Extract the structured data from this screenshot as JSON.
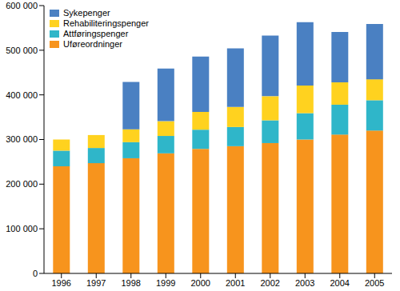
{
  "chart_data": {
    "type": "bar",
    "stacked": true,
    "legend": "top-left",
    "grid": false,
    "categories": [
      "1996",
      "1997",
      "1998",
      "1999",
      "2000",
      "2001",
      "2002",
      "2003",
      "2004",
      "2005"
    ],
    "series": [
      {
        "name": "Uføreordninger",
        "color": "#f7941d",
        "values": [
          240000,
          247000,
          258000,
          269000,
          279000,
          285000,
          292000,
          300000,
          311000,
          320000
        ]
      },
      {
        "name": "Attføringspenger",
        "color": "#2fb6c9",
        "values": [
          35000,
          34000,
          36000,
          39000,
          43000,
          43000,
          51000,
          59000,
          67000,
          68000
        ]
      },
      {
        "name": "Rehabiliteringspenger",
        "color": "#ffd21f",
        "values": [
          25000,
          29000,
          29000,
          33000,
          40000,
          45000,
          54000,
          62000,
          50000,
          47000
        ]
      },
      {
        "name": "Sykepenger",
        "color": "#4a80c2",
        "values": [
          0,
          0,
          106000,
          118000,
          124000,
          131000,
          136000,
          142000,
          113000,
          124000
        ]
      }
    ],
    "ylim": [
      0,
      600000
    ],
    "yticks": [
      0,
      {
        "value": 100000,
        "label": "100 000"
      },
      {
        "value": 200000,
        "label": "200 000"
      },
      {
        "value": 300000,
        "label": "300 000"
      },
      {
        "value": 400000,
        "label": "400 000"
      },
      {
        "value": 500000,
        "label": "500 000"
      },
      {
        "value": 600000,
        "label": "600 000"
      }
    ]
  }
}
